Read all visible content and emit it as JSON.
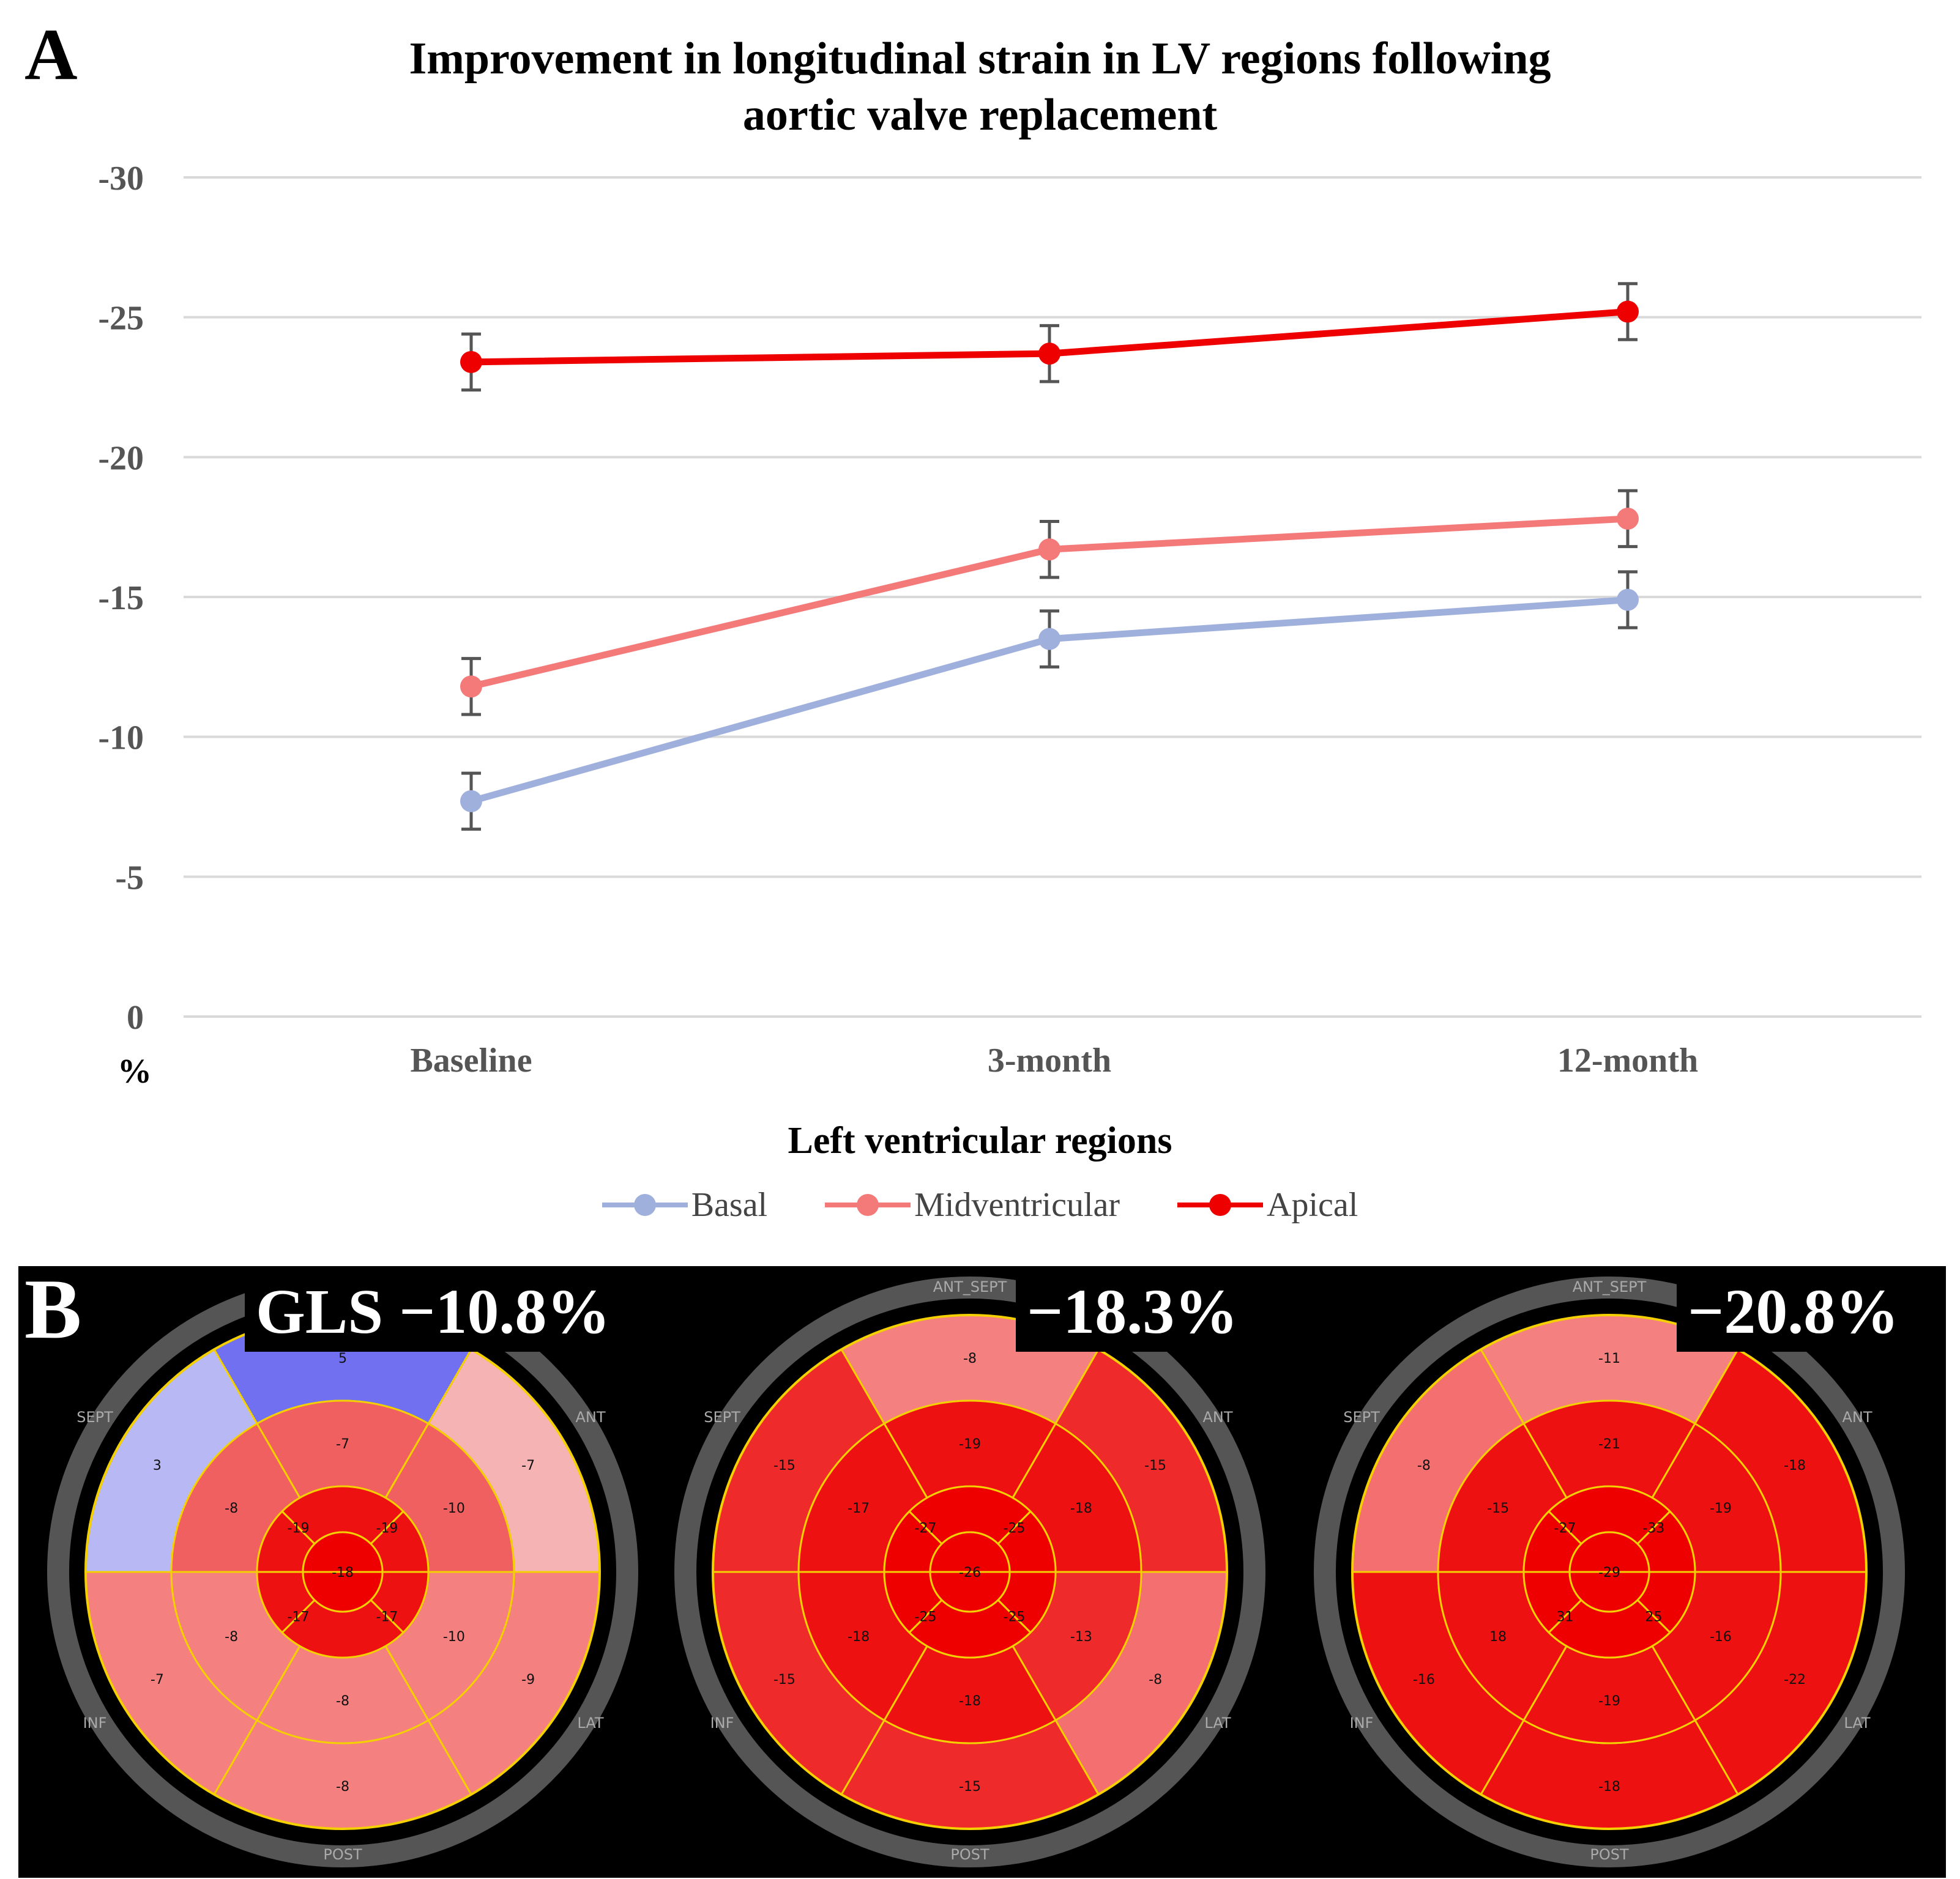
{
  "panel_a": {
    "label": "A",
    "chart_data": {
      "type": "line",
      "title_line1": "Improvement in longitudinal strain in LV regions following",
      "title_line2": "aortic valve replacement",
      "categories": [
        "Baseline",
        "3-month",
        "12-month"
      ],
      "ylabel": "%",
      "xlabel": "Left ventricular regions",
      "ylim": [
        0,
        -30
      ],
      "yticks": [
        0,
        -5,
        -10,
        -15,
        -20,
        -25,
        -30
      ],
      "ytick_labels": [
        "0",
        "-5",
        "-10",
        "-15",
        "-20",
        "-25",
        "-30"
      ],
      "grid": true,
      "legend_position": "bottom",
      "series": [
        {
          "name": "Basal",
          "color": "#9fb0dc",
          "values": [
            -7.7,
            -13.5,
            -14.9
          ],
          "errors": [
            1.0,
            1.0,
            1.0
          ]
        },
        {
          "name": "Midventricular",
          "color": "#f47a7a",
          "values": [
            -11.8,
            -16.7,
            -17.8
          ],
          "errors": [
            1.0,
            1.0,
            1.0
          ]
        },
        {
          "name": "Apical",
          "color": "#ee0000",
          "values": [
            -23.4,
            -23.7,
            -25.2
          ],
          "errors": [
            1.0,
            1.0,
            1.0
          ]
        }
      ]
    }
  },
  "panel_b": {
    "label": "B",
    "bullseyes": [
      {
        "gls": "GLS −10.8%",
        "labels": {
          "top": "",
          "top_left": "SEPT",
          "top_right": "ANT",
          "bottom_left": "INF",
          "bottom_right": "LAT",
          "bottom": "POST"
        },
        "basal": [
          "5",
          "-7",
          "-9",
          "-8",
          "-7",
          "3"
        ],
        "mid": [
          "-7",
          "-10",
          "-10",
          "-8",
          "-8",
          "-8"
        ],
        "apical": [
          "-19",
          "-19",
          "-17",
          "-17"
        ],
        "apex": "-18"
      },
      {
        "gls": "−18.3%",
        "labels": {
          "top": "ANT_SEPT",
          "top_left": "SEPT",
          "top_right": "ANT",
          "bottom_left": "INF",
          "bottom_right": "LAT",
          "bottom": "POST"
        },
        "basal": [
          "-8",
          "-15",
          "-8",
          "-15",
          "-15",
          "-15"
        ],
        "mid": [
          "-19",
          "-18",
          "-13",
          "-18",
          "-18",
          "-17"
        ],
        "apical": [
          "-27",
          "-25",
          "-25",
          "-25"
        ],
        "apex": "-26"
      },
      {
        "gls": "−20.8%",
        "labels": {
          "top": "ANT_SEPT",
          "top_left": "SEPT",
          "top_right": "ANT",
          "bottom_left": "INF",
          "bottom_right": "LAT",
          "bottom": "POST"
        },
        "basal": [
          "-11",
          "-18",
          "-22",
          "-18",
          "-16",
          "-8"
        ],
        "mid": [
          "-21",
          "-19",
          "-16",
          "-19",
          "18",
          "-15"
        ],
        "apical": [
          "-27",
          "-33",
          "25",
          "31"
        ],
        "apex": "-29"
      }
    ]
  }
}
